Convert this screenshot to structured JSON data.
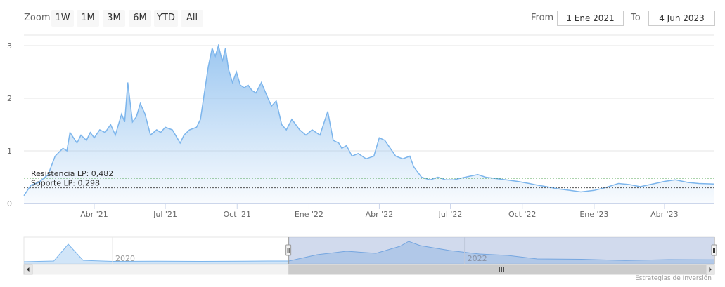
{
  "range_selector": {
    "zoom_label": "Zoom",
    "buttons": [
      "1W",
      "1M",
      "3M",
      "6M",
      "YTD",
      "All"
    ],
    "from_label": "From",
    "from_value": "1 Ene 2021",
    "to_label": "To",
    "to_value": "4 Jun 2023"
  },
  "credit": "Estrategias de Inversión",
  "navigator": {
    "year_labels": [
      "2020",
      "2022"
    ]
  },
  "colors": {
    "line": "#7cb5ec",
    "resistance": "#228b22",
    "support": "#555555",
    "navigator_mask": "#6685c2"
  },
  "chart_data": {
    "type": "area",
    "x_type": "date",
    "y_ticks": [
      "0",
      "1",
      "2",
      "3"
    ],
    "ylim": [
      0,
      3.2
    ],
    "x_ticks": [
      "Abr '21",
      "Jul '21",
      "Oct '21",
      "Ene '22",
      "Abr '22",
      "Jul '22",
      "Oct '22",
      "Ene '23",
      "Abr '23"
    ],
    "grid": true,
    "legend": "none",
    "annotations": [
      {
        "label": "Resistencia LP: 0,482",
        "y": 0.482
      },
      {
        "label": "Soporte LP: 0,298",
        "y": 0.298
      }
    ],
    "series": [
      {
        "x": [
          "2021-01-01",
          "2021-01-10",
          "2021-01-20",
          "2021-02-01",
          "2021-02-10",
          "2021-02-20",
          "2021-02-25",
          "2021-03-01",
          "2021-03-10",
          "2021-03-15",
          "2021-03-22",
          "2021-03-27",
          "2021-04-01",
          "2021-04-08",
          "2021-04-15",
          "2021-04-22",
          "2021-04-28",
          "2021-05-01",
          "2021-05-06",
          "2021-05-10",
          "2021-05-14",
          "2021-05-20",
          "2021-05-25",
          "2021-05-30",
          "2021-06-05",
          "2021-06-12",
          "2021-06-20",
          "2021-06-25",
          "2021-07-01",
          "2021-07-10",
          "2021-07-20",
          "2021-07-25",
          "2021-08-01",
          "2021-08-10",
          "2021-08-15",
          "2021-08-20",
          "2021-08-25",
          "2021-08-30",
          "2021-09-03",
          "2021-09-07",
          "2021-09-12",
          "2021-09-16",
          "2021-09-20",
          "2021-09-25",
          "2021-09-30",
          "2021-10-05",
          "2021-10-10",
          "2021-10-15",
          "2021-10-20",
          "2021-10-25",
          "2021-11-01",
          "2021-11-08",
          "2021-11-14",
          "2021-11-20",
          "2021-11-27",
          "2021-12-03",
          "2021-12-10",
          "2021-12-20",
          "2021-12-28",
          "2022-01-05",
          "2022-01-15",
          "2022-01-25",
          "2022-02-01",
          "2022-02-08",
          "2022-02-12",
          "2022-02-18",
          "2022-02-25",
          "2022-03-05",
          "2022-03-15",
          "2022-03-25",
          "2022-04-01",
          "2022-04-08",
          "2022-04-15",
          "2022-04-22",
          "2022-05-01",
          "2022-05-10",
          "2022-05-15",
          "2022-05-25",
          "2022-06-05",
          "2022-06-15",
          "2022-06-25",
          "2022-07-05",
          "2022-07-20",
          "2022-08-05",
          "2022-08-15",
          "2022-08-25",
          "2022-09-10",
          "2022-09-25",
          "2022-10-10",
          "2022-10-20",
          "2022-11-01",
          "2022-11-15",
          "2022-12-01",
          "2022-12-15",
          "2023-01-01",
          "2023-01-15",
          "2023-02-01",
          "2023-02-15",
          "2023-03-01",
          "2023-03-20",
          "2023-04-01",
          "2023-04-15",
          "2023-05-01",
          "2023-05-15",
          "2023-06-04"
        ],
        "y": [
          0.15,
          0.35,
          0.4,
          0.55,
          0.9,
          1.05,
          1.0,
          1.35,
          1.15,
          1.3,
          1.2,
          1.35,
          1.25,
          1.4,
          1.35,
          1.5,
          1.3,
          1.45,
          1.7,
          1.55,
          2.3,
          1.55,
          1.65,
          1.9,
          1.7,
          1.3,
          1.4,
          1.35,
          1.45,
          1.4,
          1.15,
          1.3,
          1.4,
          1.45,
          1.6,
          2.1,
          2.6,
          2.95,
          2.8,
          3.0,
          2.7,
          2.95,
          2.55,
          2.3,
          2.5,
          2.25,
          2.2,
          2.25,
          2.15,
          2.1,
          2.3,
          2.05,
          1.85,
          1.95,
          1.5,
          1.4,
          1.6,
          1.4,
          1.3,
          1.4,
          1.3,
          1.75,
          1.2,
          1.15,
          1.05,
          1.1,
          0.9,
          0.95,
          0.85,
          0.9,
          1.25,
          1.2,
          1.05,
          0.9,
          0.85,
          0.9,
          0.7,
          0.5,
          0.45,
          0.5,
          0.45,
          0.45,
          0.5,
          0.55,
          0.5,
          0.48,
          0.45,
          0.42,
          0.38,
          0.35,
          0.32,
          0.28,
          0.25,
          0.22,
          0.25,
          0.3,
          0.38,
          0.36,
          0.32,
          0.38,
          0.42,
          0.45,
          0.4,
          0.38,
          0.37
        ]
      }
    ],
    "navigator": {
      "x": [
        "2019-07-01",
        "2019-09-01",
        "2019-10-01",
        "2019-11-01",
        "2020-01-01",
        "2020-04-01",
        "2020-07-01",
        "2020-10-01",
        "2020-12-01",
        "2021-01-01",
        "2021-03-01",
        "2021-05-01",
        "2021-07-01",
        "2021-08-20",
        "2021-09-07",
        "2021-10-01",
        "2021-12-01",
        "2022-02-01",
        "2022-04-01",
        "2022-06-01",
        "2022-09-01",
        "2022-12-01",
        "2023-03-01",
        "2023-06-04"
      ],
      "y": [
        0.1,
        0.2,
        2.6,
        0.3,
        0.15,
        0.18,
        0.15,
        0.17,
        0.2,
        0.2,
        1.1,
        1.6,
        1.3,
        2.3,
        3.0,
        2.4,
        1.7,
        1.2,
        1.0,
        0.5,
        0.45,
        0.28,
        0.4,
        0.38
      ]
    }
  }
}
